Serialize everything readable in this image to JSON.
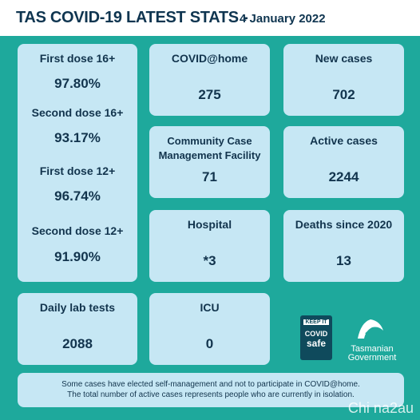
{
  "header": {
    "title": "TAS COVID-19 LATEST STATS -",
    "date": "4 January 2022"
  },
  "vaccination": [
    {
      "label": "First dose 16+",
      "value": "97.80%"
    },
    {
      "label": "Second dose 16+",
      "value": "93.17%"
    },
    {
      "label": "First dose 12+",
      "value": "96.74%"
    },
    {
      "label": "Second dose 12+",
      "value": "91.90%"
    }
  ],
  "tiles": [
    {
      "label": "COVID@home",
      "value": "275"
    },
    {
      "label": "New cases",
      "value": "702"
    },
    {
      "label": "Community Case Management Facility",
      "value": "71"
    },
    {
      "label": "Active cases",
      "value": "2244"
    },
    {
      "label": "Hospital",
      "value": "*3"
    },
    {
      "label": "Deaths since 2020",
      "value": "13"
    },
    {
      "label": "Daily lab tests",
      "value": "2088"
    },
    {
      "label": "ICU",
      "value": "0"
    }
  ],
  "logos": {
    "covid_safe": {
      "top": "KEEP IT",
      "middle": "COVID",
      "bottom": "safe"
    },
    "government": {
      "line1": "Tasmanian",
      "line2": "Government"
    }
  },
  "footer": [
    "Some cases have elected self-management and not to participate in COVID@home.",
    "The total number of active cases represents people who are currently in isolation."
  ],
  "watermark": "Chi na2au"
}
